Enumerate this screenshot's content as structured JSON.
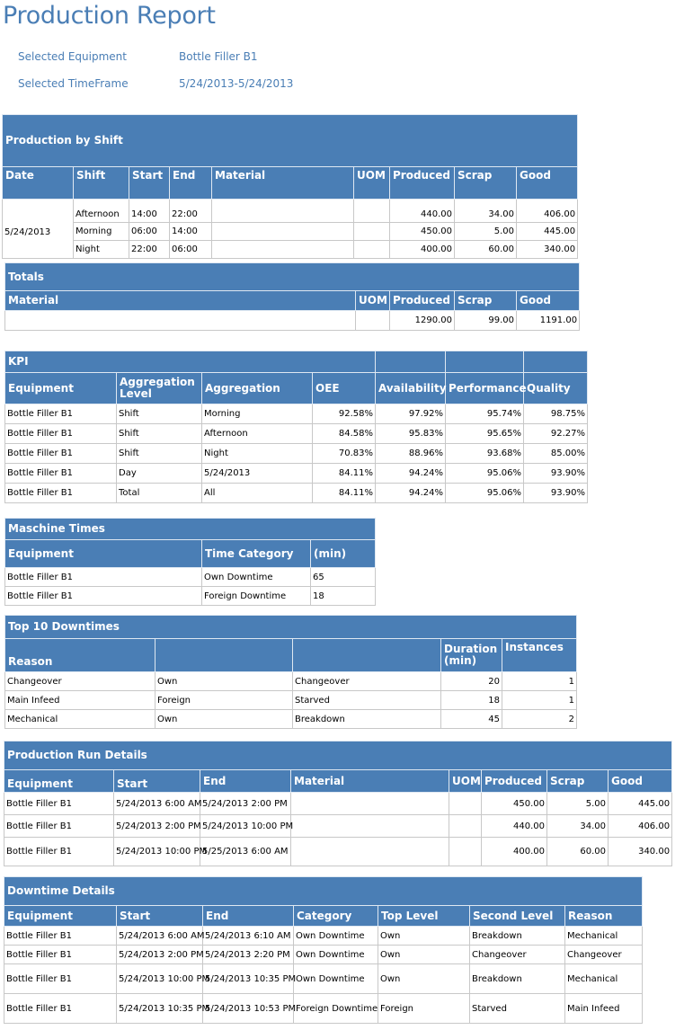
{
  "title": "Production Report",
  "meta": {
    "equipment_label": "Selected Equipment",
    "equipment_value": "Bottle Filler B1",
    "timeframe_label": "Selected TimeFrame",
    "timeframe_value": "5/24/2013-5/24/2013"
  },
  "shift": {
    "title": "Production by Shift",
    "headers": [
      "Date",
      "Shift",
      "Start",
      "End",
      "Material",
      "UOM",
      "Produced",
      "Scrap",
      "Good"
    ],
    "date": "5/24/2013",
    "rows": [
      [
        "Afternoon",
        "14:00",
        "22:00",
        "",
        "",
        "440.00",
        "34.00",
        "406.00"
      ],
      [
        "Morning",
        "06:00",
        "14:00",
        "",
        "",
        "450.00",
        "5.00",
        "445.00"
      ],
      [
        "Night",
        "22:00",
        "06:00",
        "",
        "",
        "400.00",
        "60.00",
        "340.00"
      ]
    ]
  },
  "totals": {
    "title": "Totals",
    "headers": [
      "Material",
      "UOM",
      "Produced",
      "Scrap",
      "Good"
    ],
    "rows": [
      [
        "",
        "",
        "1290.00",
        "99.00",
        "1191.00"
      ]
    ]
  },
  "kpi": {
    "title": "KPI",
    "headers": [
      "Equipment",
      "Aggregation Level",
      "Aggregation",
      "OEE",
      "Availability",
      "Performance",
      "Quality"
    ],
    "rows": [
      [
        "Bottle Filler B1",
        "Shift",
        "Morning",
        "92.58%",
        "97.92%",
        "95.74%",
        "98.75%"
      ],
      [
        "Bottle Filler B1",
        "Shift",
        "Afternoon",
        "84.58%",
        "95.83%",
        "95.65%",
        "92.27%"
      ],
      [
        "Bottle Filler B1",
        "Shift",
        "Night",
        "70.83%",
        "88.96%",
        "93.68%",
        "85.00%"
      ],
      [
        "Bottle Filler B1",
        "Day",
        "5/24/2013",
        "84.11%",
        "94.24%",
        "95.06%",
        "93.90%"
      ],
      [
        "Bottle Filler B1",
        "Total",
        "All",
        "84.11%",
        "94.24%",
        "95.06%",
        "93.90%"
      ]
    ]
  },
  "machine": {
    "title": "Maschine Times",
    "headers": [
      "Equipment",
      "Time Category",
      "(min)"
    ],
    "rows": [
      [
        "Bottle Filler B1",
        "Own Downtime",
        "65"
      ],
      [
        "Bottle Filler B1",
        "Foreign Downtime",
        "18"
      ]
    ]
  },
  "top10": {
    "title": "Top 10 Downtimes",
    "headers": [
      "Reason",
      "",
      "",
      "Duration (min)",
      "Instances"
    ],
    "rows": [
      [
        "Changeover",
        "Own",
        "Changeover",
        "20",
        "1"
      ],
      [
        "Main Infeed",
        "Foreign",
        "Starved",
        "18",
        "1"
      ],
      [
        "Mechanical",
        "Own",
        "Breakdown",
        "45",
        "2"
      ]
    ]
  },
  "runs": {
    "title": "Production Run Details",
    "headers": [
      "Equipment",
      "Start",
      "End",
      "Material",
      "UOM",
      "Produced",
      "Scrap",
      "Good"
    ],
    "rows": [
      [
        "Bottle Filler B1",
        "5/24/2013 6:00 AM",
        "5/24/2013 2:00 PM",
        "",
        "",
        "450.00",
        "5.00",
        "445.00"
      ],
      [
        "Bottle Filler B1",
        "5/24/2013 2:00 PM",
        "5/24/2013 10:00 PM",
        "",
        "",
        "440.00",
        "34.00",
        "406.00"
      ],
      [
        "Bottle Filler B1",
        "5/24/2013 10:00 PM",
        "5/25/2013 6:00 AM",
        "",
        "",
        "400.00",
        "60.00",
        "340.00"
      ]
    ]
  },
  "downtime": {
    "title": "Downtime Details",
    "headers": [
      "Equipment",
      "Start",
      "End",
      "Category",
      "Top Level",
      "Second Level",
      "Reason"
    ],
    "rows": [
      [
        "Bottle Filler B1",
        "5/24/2013 6:00 AM",
        "5/24/2013 6:10 AM",
        "Own Downtime",
        "Own",
        "Breakdown",
        "Mechanical"
      ],
      [
        "Bottle Filler B1",
        "5/24/2013 2:00 PM",
        "5/24/2013 2:20 PM",
        "Own Downtime",
        "Own",
        "Changeover",
        "Changeover"
      ],
      [
        "Bottle Filler B1",
        "5/24/2013 10:00 PM",
        "5/24/2013 10:35 PM",
        "Own Downtime",
        "Own",
        "Breakdown",
        "Mechanical"
      ],
      [
        "Bottle Filler B1",
        "5/24/2013 10:35 PM",
        "5/24/2013 10:53 PM",
        "Foreign Downtime",
        "Foreign",
        "Starved",
        "Main Infeed"
      ]
    ]
  }
}
